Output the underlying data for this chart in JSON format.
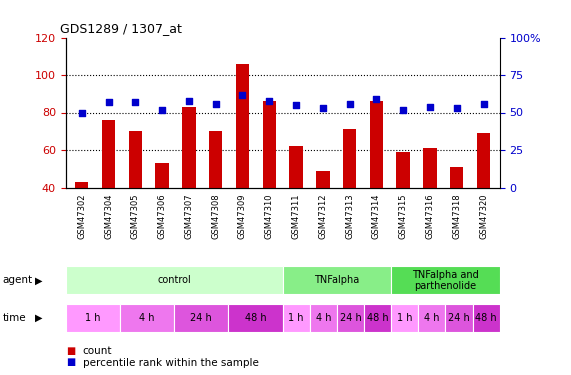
{
  "title": "GDS1289 / 1307_at",
  "samples": [
    "GSM47302",
    "GSM47304",
    "GSM47305",
    "GSM47306",
    "GSM47307",
    "GSM47308",
    "GSM47309",
    "GSM47310",
    "GSM47311",
    "GSM47312",
    "GSM47313",
    "GSM47314",
    "GSM47315",
    "GSM47316",
    "GSM47318",
    "GSM47320"
  ],
  "counts": [
    43,
    76,
    70,
    53,
    83,
    70,
    106,
    86,
    62,
    49,
    71,
    86,
    59,
    61,
    51,
    69
  ],
  "percentile": [
    50,
    57,
    57,
    52,
    58,
    56,
    62,
    58,
    55,
    53,
    56,
    59,
    52,
    54,
    53,
    56
  ],
  "bar_color": "#cc0000",
  "dot_color": "#0000cc",
  "ylim_left": [
    40,
    120
  ],
  "ylim_right": [
    0,
    100
  ],
  "yticks_left": [
    40,
    60,
    80,
    100,
    120
  ],
  "yticks_right": [
    0,
    25,
    50,
    75,
    100
  ],
  "agent_groups": [
    {
      "label": "control",
      "start": 0,
      "end": 8,
      "color": "#ccffcc"
    },
    {
      "label": "TNFalpha",
      "start": 8,
      "end": 12,
      "color": "#88ee88"
    },
    {
      "label": "TNFalpha and\nparthenolide",
      "start": 12,
      "end": 16,
      "color": "#55dd55"
    }
  ],
  "time_groups": [
    {
      "label": "1 h",
      "start": 0,
      "end": 2,
      "color": "#ff99ff"
    },
    {
      "label": "4 h",
      "start": 2,
      "end": 4,
      "color": "#ee77ee"
    },
    {
      "label": "24 h",
      "start": 4,
      "end": 6,
      "color": "#dd55dd"
    },
    {
      "label": "48 h",
      "start": 6,
      "end": 8,
      "color": "#cc33cc"
    },
    {
      "label": "1 h",
      "start": 8,
      "end": 9,
      "color": "#ff99ff"
    },
    {
      "label": "4 h",
      "start": 9,
      "end": 10,
      "color": "#ee77ee"
    },
    {
      "label": "24 h",
      "start": 10,
      "end": 11,
      "color": "#dd55dd"
    },
    {
      "label": "48 h",
      "start": 11,
      "end": 12,
      "color": "#cc33cc"
    },
    {
      "label": "1 h",
      "start": 12,
      "end": 13,
      "color": "#ff99ff"
    },
    {
      "label": "4 h",
      "start": 13,
      "end": 14,
      "color": "#ee77ee"
    },
    {
      "label": "24 h",
      "start": 14,
      "end": 15,
      "color": "#dd55dd"
    },
    {
      "label": "48 h",
      "start": 15,
      "end": 16,
      "color": "#cc33cc"
    }
  ],
  "bg_color": "#ffffff",
  "tick_color_left": "#cc0000",
  "tick_color_right": "#0000cc",
  "bar_width": 0.5,
  "legend_items": [
    {
      "label": "count",
      "color": "#cc0000"
    },
    {
      "label": "percentile rank within the sample",
      "color": "#0000cc"
    }
  ]
}
